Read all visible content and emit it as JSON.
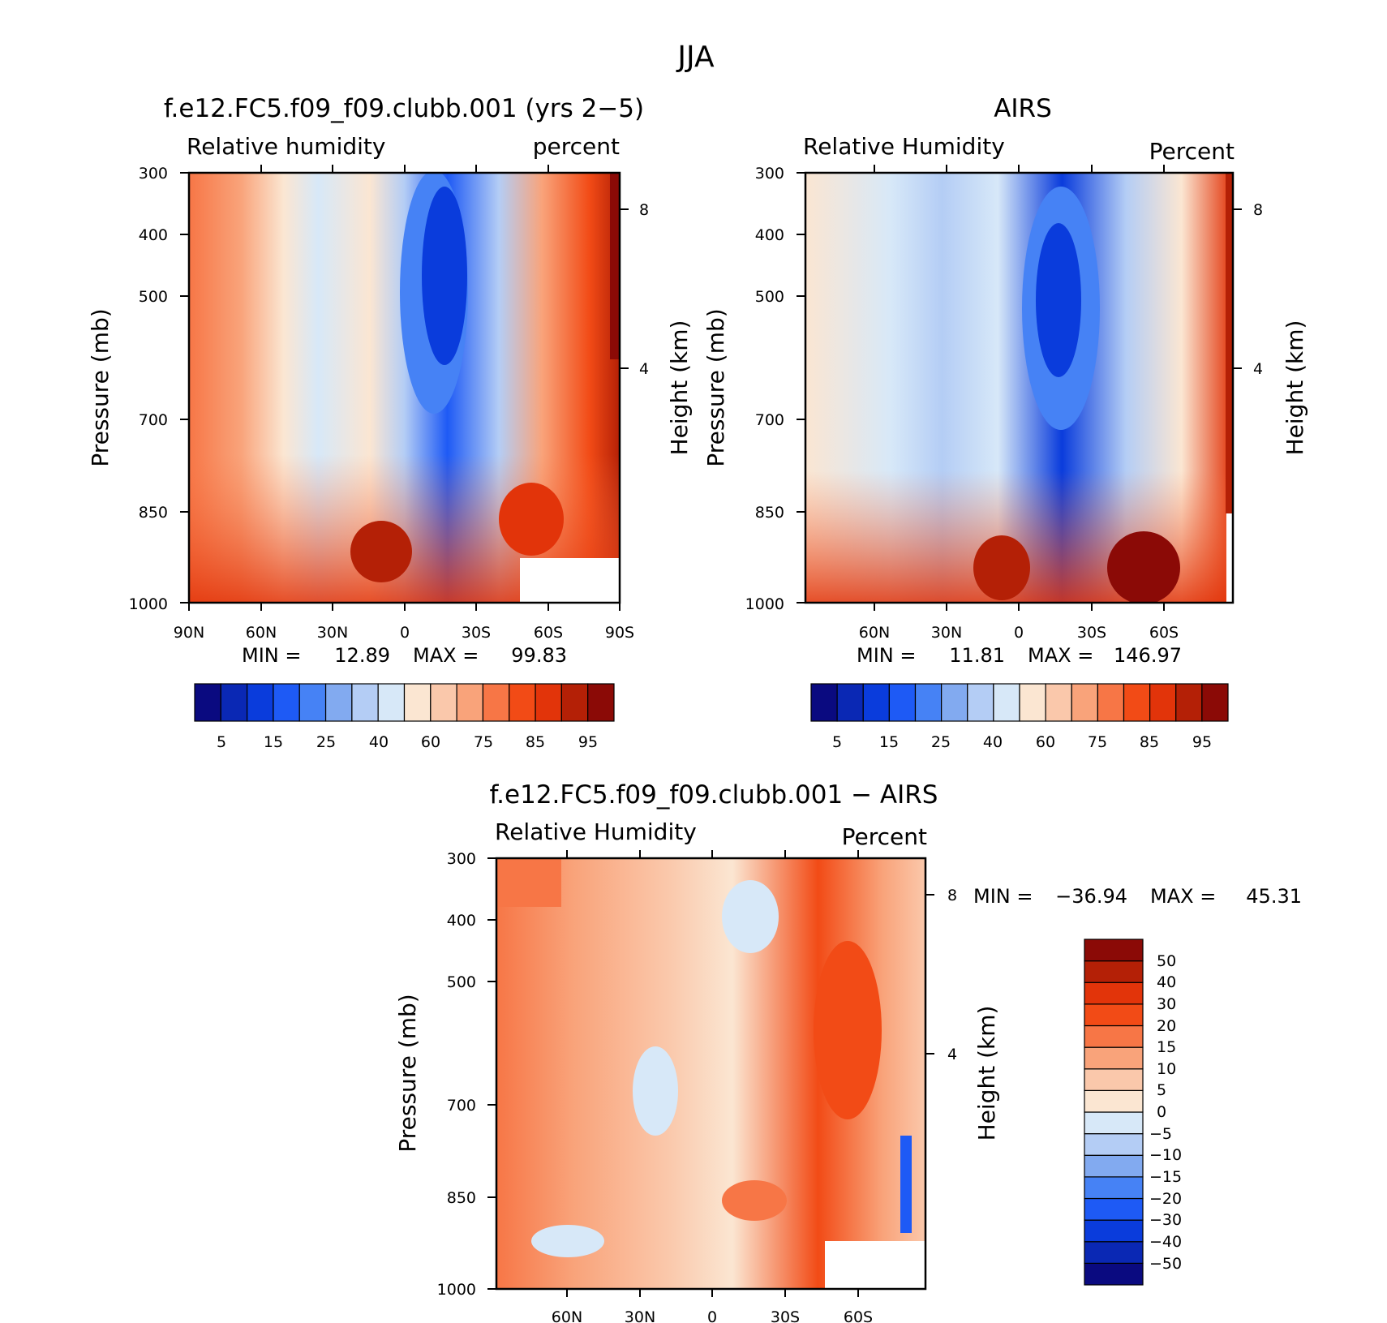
{
  "main_title": "JJA",
  "chart_data": [
    {
      "type": "heatmap",
      "title": "f.e12.FC5.f09_f09.clubb.001 (yrs 2−5)",
      "left_label": "Relative humidity",
      "right_label": "percent",
      "ylabel": "Pressure (mb)",
      "y2label": "Height (km)",
      "xticks": [
        "90N",
        "60N",
        "30N",
        "0",
        "30S",
        "60S",
        "90S"
      ],
      "yticks": [
        "300",
        "400",
        "500",
        "700",
        "850",
        "1000"
      ],
      "y2ticks": [
        "8",
        "4"
      ],
      "min_label": "MIN =",
      "min_value": "12.89",
      "max_label": "MAX =",
      "max_value": "99.83",
      "colorbar": [
        "5",
        "15",
        "25",
        "40",
        "60",
        "75",
        "85",
        "95"
      ]
    },
    {
      "type": "heatmap",
      "title": "AIRS",
      "left_label": "Relative Humidity",
      "right_label": "Percent",
      "ylabel": "Pressure (mb)",
      "y2label": "Height (km)",
      "xticks": [
        "60N",
        "30N",
        "0",
        "30S",
        "60S"
      ],
      "yticks": [
        "300",
        "400",
        "500",
        "700",
        "850",
        "1000"
      ],
      "y2ticks": [
        "8",
        "4"
      ],
      "min_label": "MIN =",
      "min_value": "11.81",
      "max_label": "MAX =",
      "max_value": "146.97",
      "colorbar": [
        "5",
        "15",
        "25",
        "40",
        "60",
        "75",
        "85",
        "95"
      ]
    },
    {
      "type": "heatmap",
      "title": "f.e12.FC5.f09_f09.clubb.001 − AIRS",
      "left_label": "Relative Humidity",
      "right_label": "Percent",
      "ylabel": "Pressure (mb)",
      "y2label": "Height (km)",
      "xticks": [
        "60N",
        "30N",
        "0",
        "30S",
        "60S"
      ],
      "yticks": [
        "300",
        "400",
        "500",
        "700",
        "850",
        "1000"
      ],
      "y2ticks": [
        "8",
        "4"
      ],
      "min_label": "MIN =",
      "min_value": "−36.94",
      "max_label": "MAX =",
      "max_value": "45.31",
      "colorbar": [
        "50",
        "40",
        "30",
        "20",
        "15",
        "10",
        "5",
        "0",
        "−5",
        "−10",
        "−15",
        "−20",
        "−30",
        "−40",
        "−50"
      ]
    }
  ],
  "palette": [
    "#0a0a80",
    "#0a28b4",
    "#0a3cdc",
    "#1e5af5",
    "#4682f5",
    "#82aaf0",
    "#b4cdf5",
    "#d7e8f8",
    "#fbe6d2",
    "#fac8ab",
    "#f9a37a",
    "#f77646",
    "#f24b16",
    "#e2340a",
    "#b42006",
    "#8b0a06"
  ]
}
